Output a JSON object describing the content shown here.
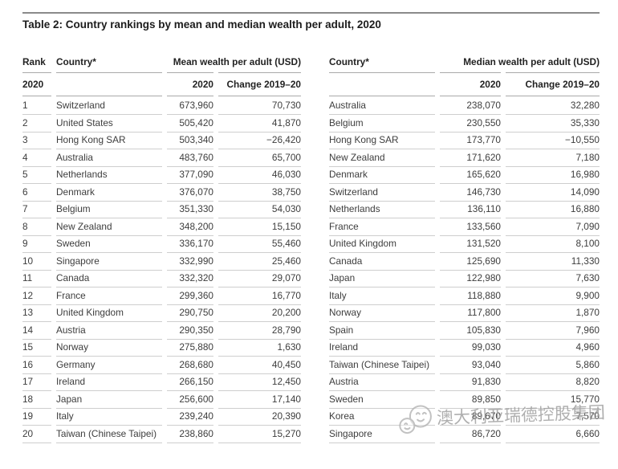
{
  "meta": {
    "title": "Table 2: Country rankings by mean and median wealth per adult, 2020"
  },
  "columns": {
    "rank": "Rank",
    "country": "Country*",
    "mean_group": "Mean wealth per adult (USD)",
    "median_group": "Median wealth per adult (USD)",
    "rank_year_sub": "2020",
    "year_sub": "2020",
    "change_sub": "Change 2019–20"
  },
  "mean_table": {
    "rows": [
      {
        "rank": "1",
        "country": "Switzerland",
        "value": "673,960",
        "change": "70,730"
      },
      {
        "rank": "2",
        "country": "United States",
        "value": "505,420",
        "change": "41,870"
      },
      {
        "rank": "3",
        "country": "Hong Kong SAR",
        "value": "503,340",
        "change": "−26,420"
      },
      {
        "rank": "4",
        "country": "Australia",
        "value": "483,760",
        "change": "65,700"
      },
      {
        "rank": "5",
        "country": "Netherlands",
        "value": "377,090",
        "change": "46,030"
      },
      {
        "rank": "6",
        "country": "Denmark",
        "value": "376,070",
        "change": "38,750"
      },
      {
        "rank": "7",
        "country": "Belgium",
        "value": "351,330",
        "change": "54,030"
      },
      {
        "rank": "8",
        "country": "New Zealand",
        "value": "348,200",
        "change": "15,150"
      },
      {
        "rank": "9",
        "country": "Sweden",
        "value": "336,170",
        "change": "55,460"
      },
      {
        "rank": "10",
        "country": "Singapore",
        "value": "332,990",
        "change": "25,460"
      },
      {
        "rank": "11",
        "country": "Canada",
        "value": "332,320",
        "change": "29,070"
      },
      {
        "rank": "12",
        "country": "France",
        "value": "299,360",
        "change": "16,770"
      },
      {
        "rank": "13",
        "country": "United Kingdom",
        "value": "290,750",
        "change": "20,200"
      },
      {
        "rank": "14",
        "country": "Austria",
        "value": "290,350",
        "change": "28,790"
      },
      {
        "rank": "15",
        "country": "Norway",
        "value": "275,880",
        "change": "1,630"
      },
      {
        "rank": "16",
        "country": "Germany",
        "value": "268,680",
        "change": "40,450"
      },
      {
        "rank": "17",
        "country": "Ireland",
        "value": "266,150",
        "change": "12,450"
      },
      {
        "rank": "18",
        "country": "Japan",
        "value": "256,600",
        "change": "17,140"
      },
      {
        "rank": "19",
        "country": "Italy",
        "value": "239,240",
        "change": "20,390"
      },
      {
        "rank": "20",
        "country": "Taiwan (Chinese Taipei)",
        "value": "238,860",
        "change": "15,270"
      }
    ]
  },
  "median_table": {
    "rows": [
      {
        "country": "Australia",
        "value": "238,070",
        "change": "32,280"
      },
      {
        "country": "Belgium",
        "value": "230,550",
        "change": "35,330"
      },
      {
        "country": "Hong Kong SAR",
        "value": "173,770",
        "change": "−10,550"
      },
      {
        "country": "New Zealand",
        "value": "171,620",
        "change": "7,180"
      },
      {
        "country": "Denmark",
        "value": "165,620",
        "change": "16,980"
      },
      {
        "country": "Switzerland",
        "value": "146,730",
        "change": "14,090"
      },
      {
        "country": "Netherlands",
        "value": "136,110",
        "change": "16,880"
      },
      {
        "country": "France",
        "value": "133,560",
        "change": "7,090"
      },
      {
        "country": "United Kingdom",
        "value": "131,520",
        "change": "8,100"
      },
      {
        "country": "Canada",
        "value": "125,690",
        "change": "11,330"
      },
      {
        "country": "Japan",
        "value": "122,980",
        "change": "7,630"
      },
      {
        "country": "Italy",
        "value": "118,880",
        "change": "9,900"
      },
      {
        "country": "Norway",
        "value": "117,800",
        "change": "1,870"
      },
      {
        "country": "Spain",
        "value": "105,830",
        "change": "7,960"
      },
      {
        "country": "Ireland",
        "value": "99,030",
        "change": "4,960"
      },
      {
        "country": "Taiwan (Chinese Taipei)",
        "value": "93,040",
        "change": "5,860"
      },
      {
        "country": "Austria",
        "value": "91,830",
        "change": "8,820"
      },
      {
        "country": "Sweden",
        "value": "89,850",
        "change": "15,770"
      },
      {
        "country": "Korea",
        "value": "89,670",
        "change": "7,570"
      },
      {
        "country": "Singapore",
        "value": "86,720",
        "change": "6,660"
      }
    ]
  },
  "watermark": {
    "logo": "chat-bubbles-logo",
    "text": "澳大利亚瑞德控股集团"
  },
  "colors": {
    "title_rule": "#8a8a8a",
    "header_rule": "#a9a9a9",
    "row_rule": "#cecece",
    "text_primary": "#1c1c1c",
    "text_body": "#3d3d3d",
    "watermark_gray": "#9e9e9e"
  }
}
